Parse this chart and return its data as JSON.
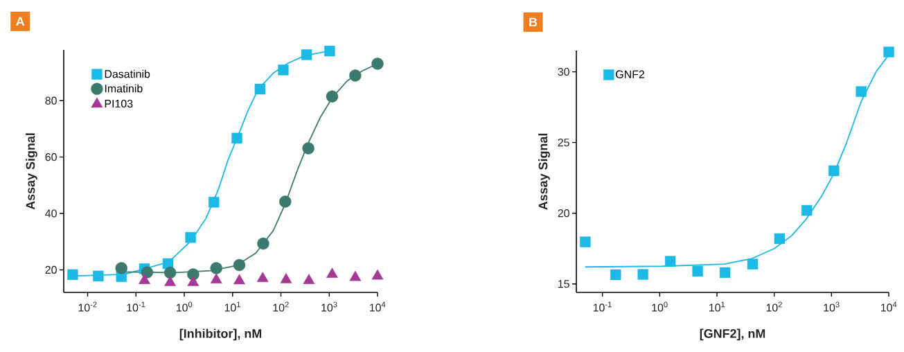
{
  "chart_data": [
    {
      "type": "scatter",
      "title": "A",
      "xlabel": "[Inhibitor], nM",
      "ylabel": "Assay Signal",
      "log": "x",
      "legend": "top left",
      "xlim": [
        0.0032,
        10000
      ],
      "ylim": [
        12,
        98
      ],
      "xticks": [
        {
          "value": 0.01,
          "label": "10$^{-2}$"
        },
        {
          "value": 0.1,
          "label": "10$^{-1}$"
        },
        {
          "value": 1,
          "label": "10$^{0}$"
        },
        {
          "value": 10,
          "label": "10$^{1}$"
        },
        {
          "value": 100,
          "label": "10$^{2}$"
        },
        {
          "value": 1000,
          "label": "10$^{3}$"
        },
        {
          "value": 10000,
          "label": "10$^{4}$"
        }
      ],
      "yticks": [
        20,
        40,
        60,
        80
      ],
      "series": [
        {
          "name": "Dasatinib",
          "type": "scatter",
          "marker": "square",
          "color": "#1cb9e6",
          "x": [
            0.0049,
            0.0166,
            0.05,
            0.15,
            0.46,
            1.35,
            4.1,
            12.3,
            37,
            112,
            340,
            1020
          ],
          "values": [
            18.3,
            17.8,
            17.6,
            20.4,
            22.2,
            31.5,
            44.0,
            66.7,
            84.1,
            90.9,
            96.3,
            97.6
          ]
        },
        {
          "name": "Imatinib",
          "type": "scatter",
          "marker": "circle",
          "color": "#3d7a6e",
          "x": [
            0.05,
            0.17,
            0.51,
            1.53,
            4.6,
            13.8,
            43,
            123,
            370,
            1150,
            3460,
            10000
          ],
          "values": [
            20.6,
            19.1,
            19.0,
            18.4,
            20.6,
            21.7,
            29.3,
            44.2,
            63.1,
            81.5,
            88.9,
            93.1
          ]
        },
        {
          "name": "PI103",
          "type": "scatter",
          "marker": "triangle",
          "color": "#a53a96",
          "x": [
            0.15,
            0.51,
            1.53,
            4.6,
            13.8,
            42,
            128,
            380,
            1150,
            3460,
            10000
          ],
          "values": [
            16.2,
            15.5,
            15.5,
            16.4,
            16.1,
            16.9,
            16.5,
            16.2,
            18.4,
            17.3,
            17.8
          ]
        },
        {
          "type": "line",
          "marker": "none",
          "color": "#1cb9e6",
          "x": [
            0.0049,
            0.058,
            0.48,
            1.38,
            2.8,
            5.1,
            8.1,
            13.2,
            21,
            34,
            69,
            138,
            316,
            1000
          ],
          "values": [
            17.8,
            18.4,
            22.8,
            30.3,
            38.2,
            48.6,
            59.1,
            67.9,
            76.6,
            84.1,
            89.7,
            93.2,
            96.0,
            97.6
          ]
        },
        {
          "type": "line",
          "marker": "none",
          "color": "#3d7a6e",
          "x": [
            0.05,
            0.6,
            3.6,
            11.8,
            30,
            69,
            123,
            222,
            357,
            650,
            1150,
            2350,
            4780,
            10000
          ],
          "values": [
            19.3,
            19.0,
            19.7,
            21.5,
            25.9,
            33.8,
            43.4,
            55.6,
            64.4,
            74.0,
            81.0,
            87.0,
            90.5,
            93.1
          ]
        }
      ]
    },
    {
      "type": "scatter",
      "title": "B",
      "xlabel": "[GNF2], nM",
      "ylabel": "Assay Signal",
      "log": "x",
      "legend": "top left",
      "xlim": [
        0.035,
        10000
      ],
      "ylim": [
        14.4,
        31.5
      ],
      "xticks": [
        {
          "value": 0.1,
          "label": "10$^{-1}$"
        },
        {
          "value": 1,
          "label": "10$^{0}$"
        },
        {
          "value": 10,
          "label": "10$^{1}$"
        },
        {
          "value": 100,
          "label": "10$^{2}$"
        },
        {
          "value": 1000,
          "label": "10$^{3}$"
        },
        {
          "value": 10000,
          "label": "10$^{4}$"
        }
      ],
      "yticks": [
        15,
        20,
        25,
        30
      ],
      "series": [
        {
          "name": "GNF2",
          "type": "scatter",
          "marker": "square",
          "color": "#1cb9e6",
          "x": [
            0.05,
            0.17,
            0.51,
            1.53,
            4.6,
            13.8,
            42,
            124,
            370,
            1100,
            3300,
            10000
          ],
          "values": [
            17.97,
            15.65,
            15.67,
            16.6,
            15.9,
            15.8,
            16.4,
            18.2,
            20.2,
            23.0,
            28.6,
            31.4
          ]
        },
        {
          "type": "line",
          "marker": "none",
          "color": "#1cb9e6",
          "x": [
            0.05,
            1.1,
            13.4,
            41,
            100,
            200,
            365,
            670,
            1100,
            1800,
            3300,
            6000,
            10000
          ],
          "values": [
            16.2,
            16.25,
            16.4,
            16.8,
            17.5,
            18.4,
            19.6,
            21.2,
            22.8,
            24.9,
            27.9,
            30.0,
            31.2
          ]
        }
      ]
    }
  ]
}
